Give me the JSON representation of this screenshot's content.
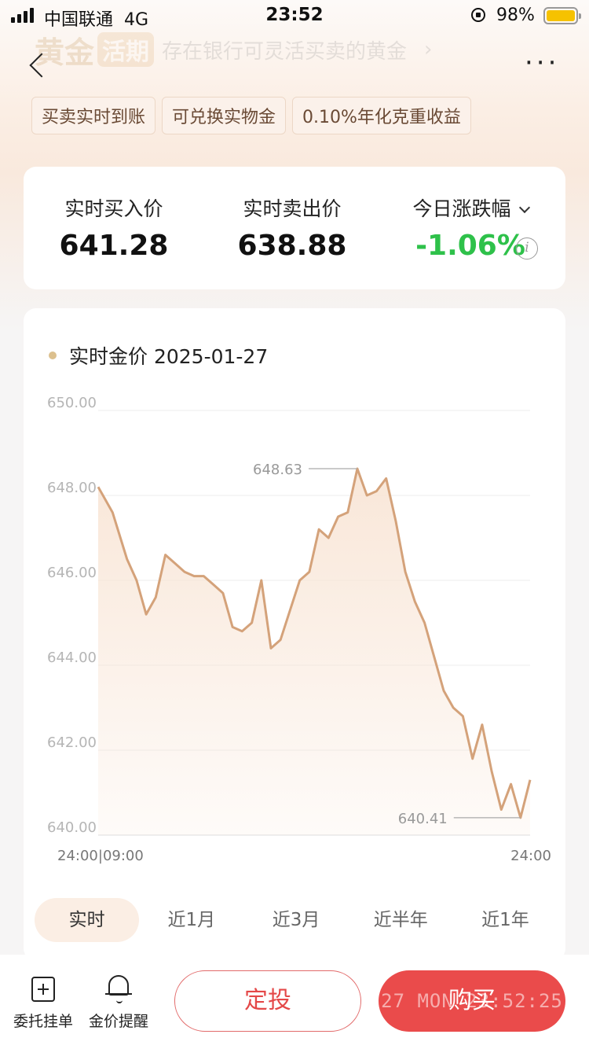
{
  "status_bar": {
    "carrier": "中国联通",
    "network": "4G",
    "time": "23:52",
    "battery": "98%"
  },
  "header": {
    "title_main": "黄金",
    "title_badge": "活期",
    "title_sub": "存在银行可灵活买卖的黄金",
    "title_arrow": "›",
    "more": "···"
  },
  "tags": [
    "买卖实时到账",
    "可兑换实物金",
    "0.10%年化克重收益"
  ],
  "prices": {
    "buy_label": "实时买入价",
    "buy_value": "641.28",
    "sell_label": "实时卖出价",
    "sell_value": "638.88",
    "change_label": "今日涨跌幅",
    "change_value": "-1.06%",
    "change_color": "#2ec14a",
    "info_icon": "i"
  },
  "chart_card": {
    "title": "实时金价 2025-01-27",
    "range_tabs": [
      "实时",
      "近1月",
      "近3月",
      "近半年",
      "近1年"
    ],
    "active_tab": 0
  },
  "chart_data": {
    "type": "line",
    "title": "实时金价 2025-01-27",
    "xlabel": "",
    "ylabel": "",
    "ylim": [
      640,
      650
    ],
    "y_ticks": [
      "650.00",
      "648.00",
      "646.00",
      "644.00",
      "642.00",
      "640.00"
    ],
    "x_tick_labels": [
      "24:00|09:00",
      "24:00"
    ],
    "x": [
      0,
      0.03,
      0.06,
      0.08,
      0.1,
      0.12,
      0.14,
      0.16,
      0.18,
      0.2,
      0.22,
      0.24,
      0.26,
      0.28,
      0.3,
      0.32,
      0.34,
      0.36,
      0.38,
      0.4,
      0.42,
      0.44,
      0.46,
      0.48,
      0.5,
      0.52,
      0.54,
      0.56,
      0.58,
      0.6,
      0.62,
      0.64,
      0.66,
      0.68,
      0.7,
      0.72,
      0.74,
      0.76,
      0.78,
      0.8,
      0.82,
      0.84,
      0.86,
      0.88,
      0.9,
      0.92,
      0.94,
      0.96,
      0.98,
      1.0
    ],
    "series": [
      {
        "values": [
          648.2,
          647.6,
          646.5,
          646.0,
          645.2,
          645.6,
          646.6,
          646.4,
          646.2,
          646.1,
          646.1,
          645.9,
          645.7,
          644.9,
          644.8,
          645.0,
          646.0,
          644.4,
          644.6,
          645.3,
          646.0,
          646.2,
          647.2,
          647.0,
          647.5,
          647.6,
          648.63,
          648.0,
          648.1,
          648.4,
          647.4,
          646.2,
          645.5,
          645.0,
          644.2,
          643.4,
          643.0,
          642.8,
          641.8,
          642.6,
          641.5,
          640.6,
          641.2,
          640.41,
          641.3,
          641.3,
          641.3,
          641.3,
          641.3,
          641.3
        ]
      }
    ],
    "points_used": 45,
    "annotations": [
      {
        "label": "648.63",
        "value": 648.63,
        "type": "max"
      },
      {
        "label": "640.41",
        "value": 640.41,
        "type": "min"
      }
    ],
    "line_color": "#d4a27a",
    "fill_color": "#f8e4d4",
    "grid": true
  },
  "bottom_bar": {
    "entrust_label": "委托挂单",
    "alert_label": "金价提醒",
    "auto_invest_label": "定投",
    "buy_label": "购买",
    "buy_watermark": "27 MON 23:52:25",
    "primary_color": "#ea4b4b"
  }
}
